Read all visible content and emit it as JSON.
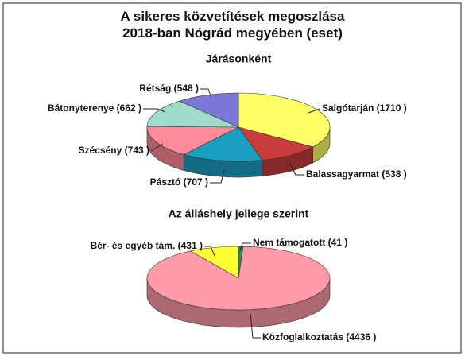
{
  "chart_data": [
    {
      "type": "pie3d",
      "title": "A sikeres közvetítések megoszlása 2018-ban Nógrád megyében (eset)",
      "subtitle": "Járásonként",
      "values": [
        1710,
        538,
        707,
        743,
        662,
        548
      ],
      "value_labels": [
        "Salgótarján (1710 )",
        "Balassagyarmat (538 )",
        "Pásztó (707 )",
        "Szécsény (743 )",
        "Bátonyterenye (662 )",
        "Rétság (548 )"
      ],
      "colors": [
        "#ffff66",
        "#c83c3c",
        "#1a9fc0",
        "#ff8a9a",
        "#9fdccb",
        "#7b78d8"
      ]
    },
    {
      "type": "pie3d",
      "subtitle": "Az álláshely jellege szerint",
      "values": [
        41,
        4436,
        431
      ],
      "value_labels": [
        "Nem támogatott (41 )",
        "Közfoglalkoztatás (4436 )",
        "Bér- és egyéb tám. (431 )"
      ],
      "colors": [
        "#2e8b57",
        "#ff9aa8",
        "#ffff33"
      ]
    }
  ]
}
